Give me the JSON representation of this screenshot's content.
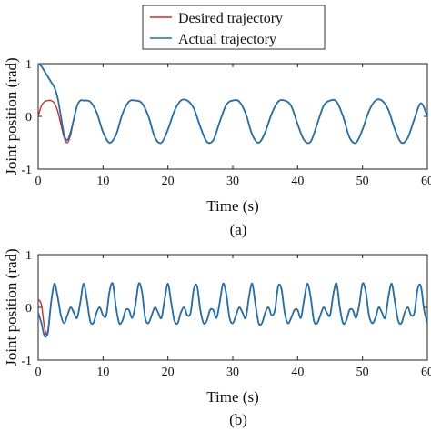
{
  "legend": {
    "entries": [
      {
        "label": "Desired trajectory",
        "color": "#d62728"
      },
      {
        "label": "Actual trajectory",
        "color": "#1f6fb2"
      }
    ],
    "placement": "top-center"
  },
  "chart_data": [
    {
      "type": "line",
      "panel_label": "(a)",
      "xlabel": "Time (s)",
      "ylabel": "Joint position (rad)",
      "xlim": [
        0,
        60
      ],
      "ylim": [
        -1,
        1
      ],
      "xticks": [
        "0",
        "10",
        "20",
        "30",
        "40",
        "50",
        "60"
      ],
      "yticks": [
        "-1",
        "0",
        "1"
      ],
      "grid": false,
      "series": [
        {
          "name": "Desired trajectory",
          "color": "#d62728",
          "x": [
            0,
            0.5,
            1,
            1.5,
            2,
            2.5,
            3,
            3.5,
            4,
            4.5,
            5,
            5.5,
            6,
            6.5,
            7,
            8,
            9,
            10,
            11,
            12,
            13,
            14,
            15,
            16,
            17,
            18,
            19,
            20,
            21,
            22,
            23,
            24,
            25,
            26,
            27,
            28,
            29,
            30,
            31,
            32,
            33,
            34,
            35,
            36,
            37,
            38,
            39,
            40,
            41,
            42,
            43,
            44,
            45,
            46,
            47,
            48,
            49,
            50,
            51,
            52,
            53,
            54,
            55,
            56,
            57,
            58,
            59,
            60
          ],
          "y": [
            0,
            0.2,
            0.28,
            0.3,
            0.3,
            0.25,
            0.1,
            -0.15,
            -0.4,
            -0.5,
            -0.35,
            -0.05,
            0.2,
            0.3,
            0.3,
            0.28,
            0.08,
            -0.3,
            -0.5,
            -0.35,
            0.05,
            0.28,
            0.3,
            0.25,
            0.0,
            -0.4,
            -0.5,
            -0.25,
            0.1,
            0.3,
            0.3,
            0.15,
            -0.2,
            -0.48,
            -0.45,
            -0.1,
            0.22,
            0.3,
            0.28,
            0.05,
            -0.35,
            -0.5,
            -0.3,
            0.05,
            0.28,
            0.3,
            0.2,
            -0.15,
            -0.45,
            -0.48,
            -0.15,
            0.2,
            0.3,
            0.28,
            0.0,
            -0.4,
            -0.5,
            -0.25,
            0.1,
            0.3,
            0.3,
            0.12,
            -0.25,
            -0.5,
            -0.4,
            -0.05,
            0.25,
            0.0
          ]
        },
        {
          "name": "Actual trajectory",
          "color": "#1f6fb2",
          "x": [
            0,
            0.5,
            1,
            1.5,
            2,
            2.5,
            3,
            3.5,
            4,
            4.5,
            5,
            5.5,
            6,
            6.5,
            7,
            8,
            9,
            10,
            11,
            12,
            13,
            14,
            15,
            16,
            17,
            18,
            19,
            20,
            21,
            22,
            23,
            24,
            25,
            26,
            27,
            28,
            29,
            30,
            31,
            32,
            33,
            34,
            35,
            36,
            37,
            38,
            39,
            40,
            41,
            42,
            43,
            44,
            45,
            46,
            47,
            48,
            49,
            50,
            51,
            52,
            53,
            54,
            55,
            56,
            57,
            58,
            59,
            60
          ],
          "y": [
            1.0,
            0.95,
            0.85,
            0.75,
            0.65,
            0.55,
            0.35,
            0.0,
            -0.35,
            -0.45,
            -0.3,
            -0.05,
            0.2,
            0.3,
            0.3,
            0.28,
            0.08,
            -0.3,
            -0.5,
            -0.35,
            0.05,
            0.28,
            0.3,
            0.25,
            0.0,
            -0.4,
            -0.5,
            -0.25,
            0.1,
            0.3,
            0.3,
            0.15,
            -0.2,
            -0.48,
            -0.45,
            -0.1,
            0.22,
            0.3,
            0.28,
            0.05,
            -0.35,
            -0.5,
            -0.3,
            0.05,
            0.28,
            0.3,
            0.2,
            -0.15,
            -0.45,
            -0.48,
            -0.15,
            0.2,
            0.3,
            0.28,
            0.0,
            -0.4,
            -0.5,
            -0.25,
            0.1,
            0.3,
            0.3,
            0.12,
            -0.25,
            -0.5,
            -0.4,
            -0.05,
            0.25,
            0.0
          ]
        }
      ]
    },
    {
      "type": "line",
      "panel_label": "(b)",
      "xlabel": "Time (s)",
      "ylabel": "Joint position (rad)",
      "xlim": [
        0,
        60
      ],
      "ylim": [
        -1,
        1
      ],
      "xticks": [
        "0",
        "10",
        "20",
        "30",
        "40",
        "50",
        "60"
      ],
      "yticks": [
        "-1",
        "0",
        "1"
      ],
      "grid": false,
      "series": [
        {
          "name": "Desired trajectory",
          "color": "#d62728",
          "x": [
            0,
            0.5,
            1,
            1.5,
            2,
            2.5,
            3,
            3.5,
            4,
            4.5,
            5,
            5.5,
            6,
            6.5,
            7,
            7.5,
            8,
            8.5,
            9,
            9.5,
            10,
            10.5,
            11,
            11.5,
            12,
            12.5,
            13,
            13.5,
            14,
            14.5,
            15,
            15.5,
            16,
            16.5,
            17,
            17.5,
            18,
            18.5,
            19,
            19.5,
            20,
            20.5,
            21,
            21.5,
            22,
            22.5,
            23,
            23.5,
            24,
            24.5,
            25,
            25.5,
            26,
            26.5,
            27,
            27.5,
            28,
            28.5,
            29,
            29.5,
            30,
            30.5,
            31,
            31.5,
            32,
            32.5,
            33,
            33.5,
            34,
            34.5,
            35,
            35.5,
            36,
            36.5,
            37,
            37.5,
            38,
            38.5,
            39,
            39.5,
            40,
            40.5,
            41,
            41.5,
            42,
            42.5,
            43,
            43.5,
            44,
            44.5,
            45,
            45.5,
            46,
            46.5,
            47,
            47.5,
            48,
            48.5,
            49,
            49.5,
            50,
            50.5,
            51,
            51.5,
            52,
            52.5,
            53,
            53.5,
            54,
            54.5,
            55,
            55.5,
            56,
            56.5,
            57,
            57.5,
            58,
            58.5,
            59,
            59.5,
            60
          ],
          "y": [
            0.15,
            0.05,
            -0.4,
            -0.5,
            0.1,
            0.45,
            0.2,
            -0.15,
            -0.3,
            -0.15,
            0.0,
            -0.1,
            -0.2,
            0.1,
            0.45,
            0.15,
            -0.25,
            -0.3,
            -0.1,
            0.0,
            -0.15,
            -0.15,
            0.3,
            0.45,
            0.0,
            -0.3,
            -0.25,
            -0.05,
            -0.05,
            -0.2,
            0.05,
            0.45,
            0.3,
            -0.2,
            -0.3,
            -0.15,
            0.0,
            -0.1,
            -0.2,
            0.15,
            0.45,
            0.1,
            -0.25,
            -0.3,
            -0.1,
            0.0,
            -0.15,
            -0.1,
            0.35,
            0.4,
            -0.05,
            -0.3,
            -0.25,
            -0.05,
            -0.05,
            -0.2,
            0.1,
            0.45,
            0.25,
            -0.2,
            -0.3,
            -0.15,
            0.0,
            -0.1,
            -0.2,
            0.2,
            0.45,
            0.05,
            -0.3,
            -0.3,
            -0.1,
            0.0,
            -0.15,
            -0.05,
            0.4,
            0.35,
            -0.1,
            -0.3,
            -0.2,
            -0.05,
            -0.05,
            -0.2,
            0.15,
            0.45,
            0.2,
            -0.25,
            -0.3,
            -0.15,
            0.0,
            -0.1,
            -0.15,
            0.25,
            0.45,
            0.0,
            -0.3,
            -0.25,
            -0.05,
            -0.05,
            -0.2,
            0.05,
            0.45,
            0.3,
            -0.15,
            -0.3,
            -0.2,
            0.0,
            -0.1,
            -0.2,
            0.2,
            0.45,
            0.1,
            -0.25,
            -0.3,
            -0.1,
            0.0,
            -0.15,
            -0.1,
            0.35,
            0.4,
            -0.05,
            -0.3
          ]
        },
        {
          "name": "Actual trajectory",
          "color": "#1f6fb2",
          "x": [
            0,
            0.5,
            1,
            1.5,
            2,
            2.5,
            3,
            3.5,
            4,
            4.5,
            5,
            5.5,
            6,
            6.5,
            7,
            7.5,
            8,
            8.5,
            9,
            9.5,
            10,
            10.5,
            11,
            11.5,
            12,
            12.5,
            13,
            13.5,
            14,
            14.5,
            15,
            15.5,
            16,
            16.5,
            17,
            17.5,
            18,
            18.5,
            19,
            19.5,
            20,
            20.5,
            21,
            21.5,
            22,
            22.5,
            23,
            23.5,
            24,
            24.5,
            25,
            25.5,
            26,
            26.5,
            27,
            27.5,
            28,
            28.5,
            29,
            29.5,
            30,
            30.5,
            31,
            31.5,
            32,
            32.5,
            33,
            33.5,
            34,
            34.5,
            35,
            35.5,
            36,
            36.5,
            37,
            37.5,
            38,
            38.5,
            39,
            39.5,
            40,
            40.5,
            41,
            41.5,
            42,
            42.5,
            43,
            43.5,
            44,
            44.5,
            45,
            45.5,
            46,
            46.5,
            47,
            47.5,
            48,
            48.5,
            49,
            49.5,
            50,
            50.5,
            51,
            51.5,
            52,
            52.5,
            53,
            53.5,
            54,
            54.5,
            55,
            55.5,
            56,
            56.5,
            57,
            57.5,
            58,
            58.5,
            59,
            59.5,
            60
          ],
          "y": [
            -0.1,
            -0.3,
            -0.55,
            -0.45,
            0.1,
            0.45,
            0.2,
            -0.15,
            -0.3,
            -0.15,
            0.0,
            -0.1,
            -0.2,
            0.1,
            0.45,
            0.15,
            -0.25,
            -0.3,
            -0.1,
            0.0,
            -0.15,
            -0.15,
            0.3,
            0.45,
            0.0,
            -0.3,
            -0.25,
            -0.05,
            -0.05,
            -0.2,
            0.05,
            0.45,
            0.3,
            -0.2,
            -0.3,
            -0.15,
            0.0,
            -0.1,
            -0.2,
            0.15,
            0.45,
            0.1,
            -0.25,
            -0.3,
            -0.1,
            0.0,
            -0.15,
            -0.1,
            0.35,
            0.4,
            -0.05,
            -0.3,
            -0.25,
            -0.05,
            -0.05,
            -0.2,
            0.1,
            0.45,
            0.25,
            -0.2,
            -0.3,
            -0.15,
            0.0,
            -0.1,
            -0.2,
            0.2,
            0.45,
            0.05,
            -0.3,
            -0.3,
            -0.1,
            0.0,
            -0.15,
            -0.05,
            0.4,
            0.35,
            -0.1,
            -0.3,
            -0.2,
            -0.05,
            -0.05,
            -0.2,
            0.15,
            0.45,
            0.2,
            -0.25,
            -0.3,
            -0.15,
            0.0,
            -0.1,
            -0.15,
            0.25,
            0.45,
            0.0,
            -0.3,
            -0.25,
            -0.05,
            -0.05,
            -0.2,
            0.05,
            0.45,
            0.3,
            -0.15,
            -0.3,
            -0.2,
            0.0,
            -0.1,
            -0.2,
            0.2,
            0.45,
            0.1,
            -0.25,
            -0.3,
            -0.1,
            0.0,
            -0.15,
            -0.1,
            0.35,
            0.4,
            -0.05,
            -0.3
          ]
        }
      ]
    }
  ]
}
